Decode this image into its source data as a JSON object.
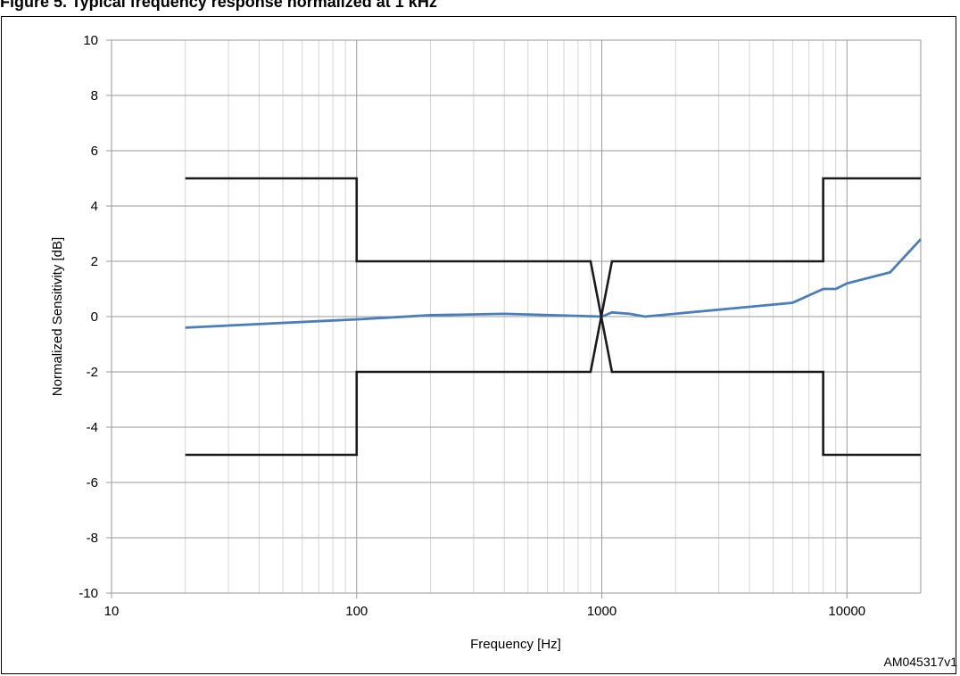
{
  "figure": {
    "title": "Figure 5.     Typical frequency response normalized at 1 kHz",
    "id": "AM045317v1"
  },
  "chart_data": {
    "type": "line",
    "xlabel": "Frequency [Hz]",
    "ylabel": "Normalized Sensitivity [dB]",
    "x_scale": "log",
    "xlim": [
      10,
      20000
    ],
    "ylim": [
      -10,
      10
    ],
    "x_ticks": [
      10,
      100,
      1000,
      10000
    ],
    "x_tick_labels": [
      "10",
      "100",
      "1000",
      "10000"
    ],
    "y_ticks": [
      -10,
      -8,
      -6,
      -4,
      -2,
      0,
      2,
      4,
      6,
      8,
      10
    ],
    "y_tick_labels": [
      "-10",
      "-8",
      "-6",
      "-4",
      "-2",
      "0",
      "2",
      "4",
      "6",
      "8",
      "10"
    ],
    "grid": true,
    "legend": "none",
    "series": [
      {
        "color": "#4a7ebb",
        "points": [
          [
            20,
            -0.4
          ],
          [
            100,
            -0.1
          ],
          [
            200,
            0.05
          ],
          [
            400,
            0.1
          ],
          [
            1000,
            0.0
          ],
          [
            1100,
            0.15
          ],
          [
            1300,
            0.1
          ],
          [
            1500,
            0.0
          ],
          [
            3000,
            0.25
          ],
          [
            6000,
            0.5
          ],
          [
            8000,
            1.0
          ],
          [
            9000,
            1.0
          ],
          [
            10000,
            1.2
          ],
          [
            15000,
            1.6
          ],
          [
            20000,
            2.8
          ]
        ]
      },
      {
        "color": "#1a1a1a",
        "points": [
          [
            20,
            5
          ],
          [
            100,
            5
          ],
          [
            100,
            2
          ],
          [
            900,
            2
          ],
          [
            1100,
            -2
          ],
          [
            8000,
            -2
          ],
          [
            8000,
            -5
          ],
          [
            20000,
            -5
          ]
        ]
      },
      {
        "color": "#1a1a1a",
        "points": [
          [
            20,
            -5
          ],
          [
            100,
            -5
          ],
          [
            100,
            -2
          ],
          [
            900,
            -2
          ],
          [
            1100,
            2
          ],
          [
            8000,
            2
          ],
          [
            8000,
            5
          ],
          [
            20000,
            5
          ]
        ]
      }
    ]
  }
}
